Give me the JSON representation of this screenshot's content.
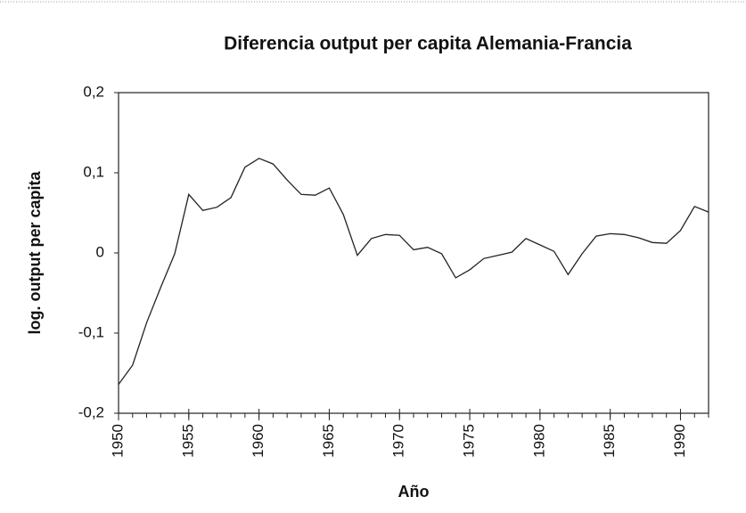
{
  "chart_data": {
    "type": "line",
    "title": "Diferencia output per capita Alemania-Francia",
    "x_label": "Año",
    "y_label": "log. output per capita",
    "x": [
      1950,
      1951,
      1952,
      1953,
      1954,
      1955,
      1956,
      1957,
      1958,
      1959,
      1960,
      1961,
      1962,
      1963,
      1964,
      1965,
      1966,
      1967,
      1968,
      1969,
      1970,
      1971,
      1972,
      1973,
      1974,
      1975,
      1976,
      1977,
      1978,
      1979,
      1980,
      1981,
      1982,
      1983,
      1984,
      1985,
      1986,
      1987,
      1988,
      1989,
      1990,
      1991,
      1992
    ],
    "series": [
      {
        "color": "#222222",
        "values": [
          -0.164,
          -0.14,
          -0.087,
          -0.043,
          -0.001,
          0.073,
          0.053,
          0.057,
          0.069,
          0.107,
          0.118,
          0.111,
          0.091,
          0.073,
          0.072,
          0.081,
          0.048,
          -0.003,
          0.018,
          0.023,
          0.022,
          0.004,
          0.007,
          -0.001,
          -0.031,
          -0.021,
          -0.007,
          -0.003,
          0.001,
          0.018,
          0.01,
          0.002,
          -0.027,
          -0.001,
          0.021,
          0.024,
          0.023,
          0.019,
          0.013,
          0.012,
          0.028,
          0.058,
          0.051
        ]
      }
    ],
    "xlim": [
      1950,
      1992
    ],
    "xticks": [
      1950,
      1955,
      1960,
      1965,
      1970,
      1975,
      1980,
      1985,
      1990
    ],
    "ylim": [
      -0.2,
      0.2
    ],
    "yticks": [
      {
        "value": -0.2,
        "label": "-0,2"
      },
      {
        "value": -0.1,
        "label": "-0,1"
      },
      0,
      {
        "value": 0.1,
        "label": "0,1"
      },
      {
        "value": 0.2,
        "label": "0,2"
      }
    ],
    "grid": false
  }
}
